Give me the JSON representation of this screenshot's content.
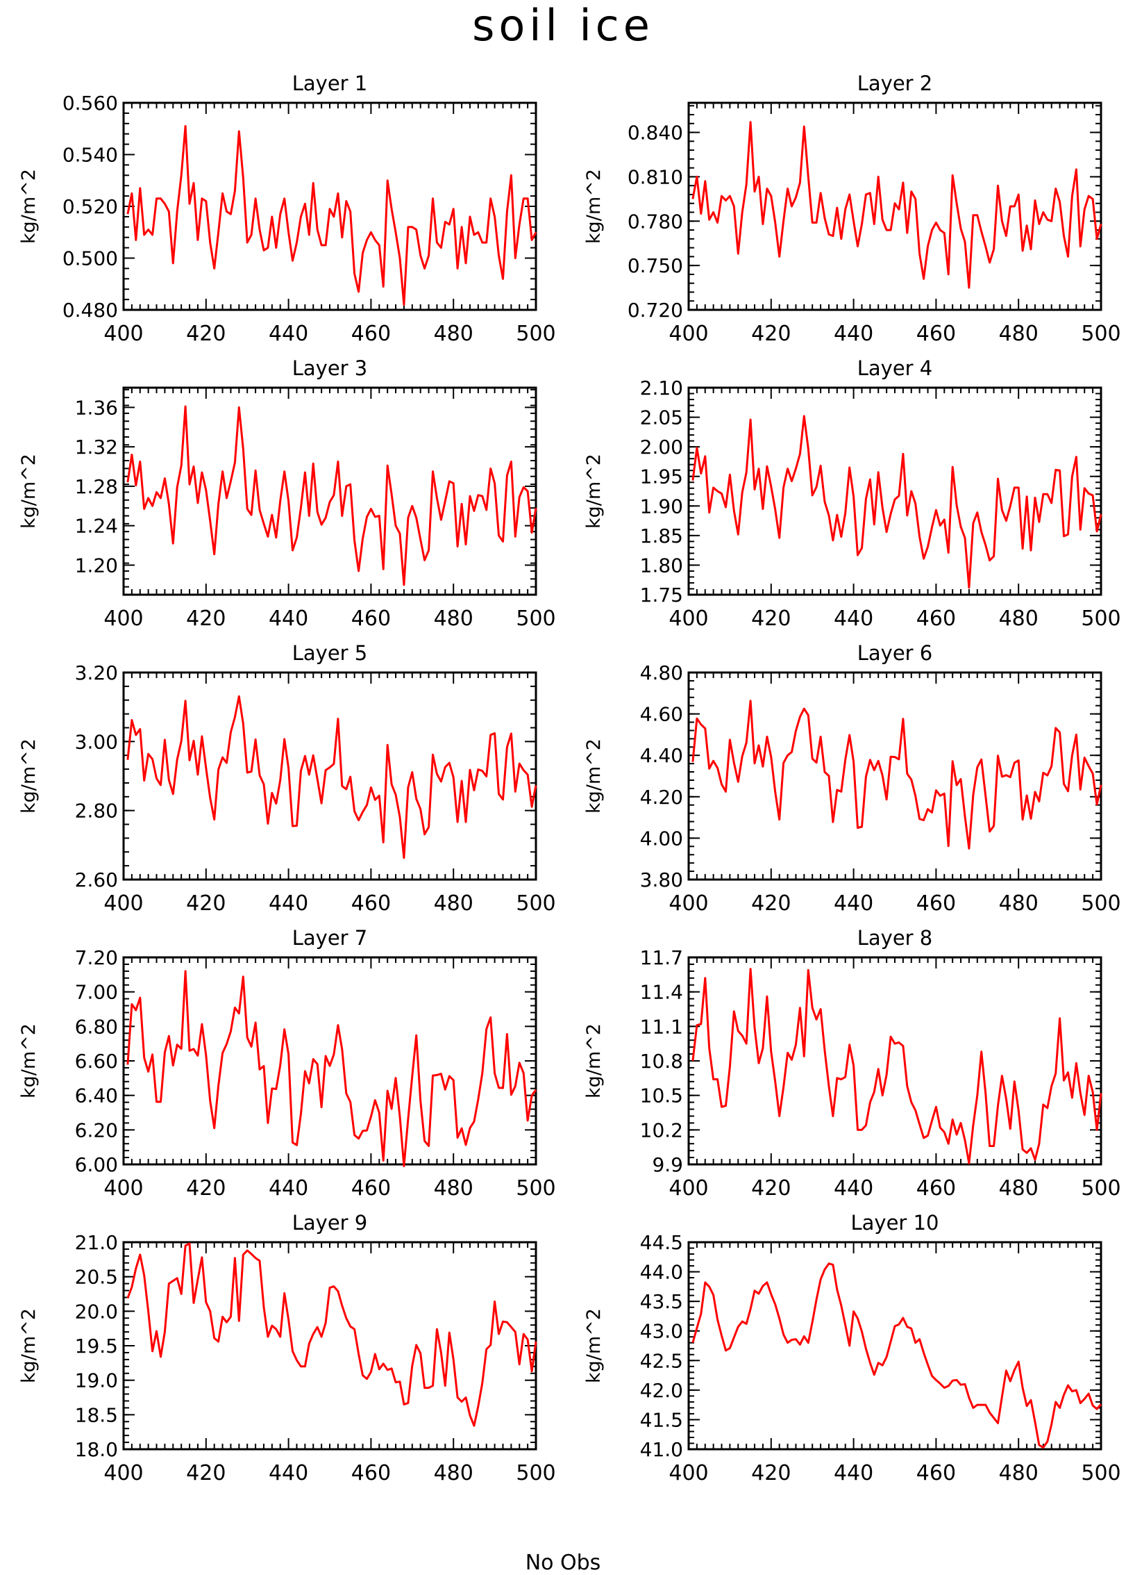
{
  "title": "soil ice",
  "x_caption": "No Obs",
  "style": {
    "line_color": "#ff0000",
    "axis_color": "#000000"
  },
  "chart_data": [
    {
      "type": "line",
      "title": "Layer 1",
      "ylabel": "kg/m^2",
      "xlim": [
        400,
        500
      ],
      "ylim": [
        0.48,
        0.56
      ],
      "yticks": [
        0.48,
        0.5,
        0.52,
        0.54,
        0.56
      ],
      "ydec": 3,
      "xticks": [
        400,
        420,
        440,
        460,
        480,
        500
      ],
      "x_start": 401,
      "values": [
        0.517,
        0.525,
        0.507,
        0.527,
        0.509,
        0.511,
        0.509,
        0.523,
        0.523,
        0.521,
        0.518,
        0.498,
        0.518,
        0.532,
        0.551,
        0.521,
        0.529,
        0.507,
        0.523,
        0.522,
        0.506,
        0.496,
        0.51,
        0.525,
        0.518,
        0.517,
        0.526,
        0.549,
        0.531,
        0.506,
        0.509,
        0.523,
        0.511,
        0.503,
        0.504,
        0.516,
        0.504,
        0.517,
        0.523,
        0.51,
        0.499,
        0.506,
        0.516,
        0.521,
        0.509,
        0.529,
        0.511,
        0.505,
        0.505,
        0.519,
        0.516,
        0.525,
        0.508,
        0.522,
        0.518,
        0.494,
        0.487,
        0.502,
        0.507,
        0.51,
        0.507,
        0.505,
        0.489,
        0.53,
        0.519,
        0.51,
        0.5,
        0.482,
        0.512,
        0.512,
        0.511,
        0.501,
        0.496,
        0.501,
        0.523,
        0.506,
        0.504,
        0.514,
        0.513,
        0.519,
        0.496,
        0.512,
        0.498,
        0.516,
        0.509,
        0.51,
        0.506,
        0.506,
        0.523,
        0.516,
        0.501,
        0.492,
        0.518,
        0.532,
        0.5,
        0.513,
        0.523,
        0.523,
        0.507,
        0.51
      ]
    },
    {
      "type": "line",
      "title": "Layer 2",
      "ylabel": "kg/m^2",
      "xlim": [
        400,
        500
      ],
      "ylim": [
        0.72,
        0.86
      ],
      "yticks": [
        0.72,
        0.75,
        0.78,
        0.81,
        0.84
      ],
      "ydec": 3,
      "xticks": [
        400,
        420,
        440,
        460,
        480,
        500
      ],
      "x_start": 401,
      "values": [
        0.795,
        0.81,
        0.785,
        0.807,
        0.781,
        0.786,
        0.779,
        0.797,
        0.794,
        0.797,
        0.79,
        0.758,
        0.786,
        0.805,
        0.847,
        0.8,
        0.81,
        0.778,
        0.802,
        0.797,
        0.779,
        0.756,
        0.78,
        0.802,
        0.79,
        0.796,
        0.806,
        0.844,
        0.81,
        0.779,
        0.779,
        0.799,
        0.782,
        0.771,
        0.77,
        0.789,
        0.768,
        0.788,
        0.798,
        0.78,
        0.763,
        0.778,
        0.798,
        0.799,
        0.778,
        0.81,
        0.781,
        0.774,
        0.774,
        0.792,
        0.788,
        0.806,
        0.772,
        0.8,
        0.795,
        0.758,
        0.741,
        0.763,
        0.774,
        0.779,
        0.774,
        0.772,
        0.744,
        0.811,
        0.792,
        0.775,
        0.766,
        0.735,
        0.784,
        0.784,
        0.773,
        0.763,
        0.752,
        0.761,
        0.804,
        0.78,
        0.77,
        0.79,
        0.79,
        0.798,
        0.76,
        0.777,
        0.761,
        0.794,
        0.778,
        0.786,
        0.781,
        0.78,
        0.802,
        0.793,
        0.77,
        0.756,
        0.797,
        0.815,
        0.763,
        0.788,
        0.797,
        0.795,
        0.768,
        0.778
      ]
    },
    {
      "type": "line",
      "title": "Layer 3",
      "ylabel": "kg/m^2",
      "xlim": [
        400,
        500
      ],
      "ylim": [
        1.17,
        1.38
      ],
      "yticks": [
        1.2,
        1.24,
        1.28,
        1.32,
        1.36
      ],
      "ydec": 2,
      "xticks": [
        400,
        420,
        440,
        460,
        480,
        500
      ],
      "x_start": 401,
      "values": [
        1.284,
        1.312,
        1.281,
        1.305,
        1.257,
        1.268,
        1.26,
        1.274,
        1.268,
        1.288,
        1.262,
        1.222,
        1.279,
        1.301,
        1.361,
        1.282,
        1.3,
        1.263,
        1.294,
        1.276,
        1.245,
        1.211,
        1.262,
        1.295,
        1.268,
        1.285,
        1.304,
        1.36,
        1.318,
        1.257,
        1.251,
        1.296,
        1.256,
        1.242,
        1.229,
        1.251,
        1.228,
        1.265,
        1.295,
        1.265,
        1.215,
        1.228,
        1.258,
        1.294,
        1.25,
        1.303,
        1.254,
        1.241,
        1.248,
        1.264,
        1.271,
        1.305,
        1.25,
        1.28,
        1.282,
        1.225,
        1.194,
        1.227,
        1.249,
        1.257,
        1.249,
        1.25,
        1.196,
        1.301,
        1.272,
        1.24,
        1.232,
        1.18,
        1.248,
        1.26,
        1.248,
        1.226,
        1.205,
        1.215,
        1.295,
        1.268,
        1.246,
        1.265,
        1.285,
        1.283,
        1.219,
        1.262,
        1.221,
        1.27,
        1.255,
        1.271,
        1.27,
        1.256,
        1.298,
        1.283,
        1.23,
        1.224,
        1.291,
        1.305,
        1.229,
        1.269,
        1.279,
        1.275,
        1.233,
        1.258
      ]
    },
    {
      "type": "line",
      "title": "Layer 4",
      "ylabel": "kg/m^2",
      "xlim": [
        400,
        500
      ],
      "ylim": [
        1.75,
        2.1
      ],
      "yticks": [
        1.75,
        1.8,
        1.85,
        1.9,
        1.95,
        2.0,
        2.05,
        2.1
      ],
      "ydec": 2,
      "xticks": [
        400,
        420,
        440,
        460,
        480,
        500
      ],
      "x_start": 401,
      "values": [
        1.943,
        1.998,
        1.955,
        1.984,
        1.889,
        1.931,
        1.925,
        1.921,
        1.898,
        1.953,
        1.892,
        1.852,
        1.923,
        1.957,
        2.046,
        1.928,
        1.963,
        1.895,
        1.967,
        1.933,
        1.894,
        1.846,
        1.931,
        1.963,
        1.942,
        1.963,
        1.988,
        2.052,
        1.997,
        1.918,
        1.932,
        1.968,
        1.907,
        1.884,
        1.842,
        1.885,
        1.848,
        1.888,
        1.965,
        1.916,
        1.817,
        1.829,
        1.912,
        1.945,
        1.869,
        1.957,
        1.897,
        1.856,
        1.887,
        1.911,
        1.917,
        1.988,
        1.884,
        1.925,
        1.904,
        1.848,
        1.811,
        1.831,
        1.864,
        1.893,
        1.867,
        1.877,
        1.821,
        1.966,
        1.901,
        1.865,
        1.846,
        1.762,
        1.871,
        1.889,
        1.856,
        1.834,
        1.808,
        1.815,
        1.946,
        1.893,
        1.875,
        1.9,
        1.931,
        1.931,
        1.828,
        1.916,
        1.825,
        1.914,
        1.873,
        1.92,
        1.92,
        1.905,
        1.961,
        1.96,
        1.849,
        1.852,
        1.95,
        1.983,
        1.86,
        1.93,
        1.921,
        1.918,
        1.857,
        1.886
      ]
    },
    {
      "type": "line",
      "title": "Layer 5",
      "ylabel": "kg/m^2",
      "xlim": [
        400,
        500
      ],
      "ylim": [
        2.6,
        3.2
      ],
      "yticks": [
        2.6,
        2.8,
        3.0,
        3.2
      ],
      "ydec": 2,
      "xticks": [
        400,
        420,
        440,
        460,
        480,
        500
      ],
      "x_start": 401,
      "values": [
        2.947,
        3.062,
        3.019,
        3.036,
        2.887,
        2.964,
        2.949,
        2.893,
        2.874,
        3.005,
        2.889,
        2.848,
        2.948,
        3.001,
        3.118,
        2.946,
        3.002,
        2.904,
        3.015,
        2.923,
        2.837,
        2.774,
        2.919,
        2.954,
        2.938,
        3.027,
        3.071,
        3.131,
        3.052,
        2.91,
        2.913,
        3.006,
        2.902,
        2.876,
        2.762,
        2.851,
        2.82,
        2.888,
        3.007,
        2.923,
        2.755,
        2.756,
        2.915,
        2.958,
        2.904,
        2.96,
        2.891,
        2.821,
        2.917,
        2.925,
        2.935,
        3.066,
        2.871,
        2.862,
        2.898,
        2.798,
        2.772,
        2.796,
        2.816,
        2.867,
        2.831,
        2.843,
        2.708,
        2.99,
        2.876,
        2.846,
        2.781,
        2.663,
        2.867,
        2.911,
        2.834,
        2.804,
        2.731,
        2.752,
        2.962,
        2.906,
        2.884,
        2.926,
        2.938,
        2.896,
        2.767,
        2.886,
        2.767,
        2.918,
        2.859,
        2.919,
        2.915,
        2.899,
        3.019,
        3.024,
        2.848,
        2.832,
        2.984,
        3.023,
        2.855,
        2.936,
        2.917,
        2.904,
        2.811,
        2.873
      ]
    },
    {
      "type": "line",
      "title": "Layer 6",
      "ylabel": "kg/m^2",
      "xlim": [
        400,
        500
      ],
      "ylim": [
        3.8,
        4.8
      ],
      "yticks": [
        3.8,
        4.0,
        4.2,
        4.4,
        4.6,
        4.8
      ],
      "ydec": 2,
      "xticks": [
        400,
        420,
        440,
        460,
        480,
        500
      ],
      "x_start": 401,
      "values": [
        4.368,
        4.578,
        4.549,
        4.53,
        4.336,
        4.373,
        4.339,
        4.26,
        4.225,
        4.475,
        4.364,
        4.272,
        4.396,
        4.461,
        4.663,
        4.361,
        4.448,
        4.346,
        4.49,
        4.392,
        4.223,
        4.09,
        4.363,
        4.4,
        4.416,
        4.518,
        4.586,
        4.625,
        4.594,
        4.384,
        4.365,
        4.49,
        4.319,
        4.301,
        4.078,
        4.233,
        4.225,
        4.379,
        4.498,
        4.369,
        4.05,
        4.055,
        4.297,
        4.378,
        4.329,
        4.373,
        4.303,
        4.187,
        4.393,
        4.392,
        4.381,
        4.576,
        4.311,
        4.283,
        4.204,
        4.093,
        4.087,
        4.14,
        4.124,
        4.231,
        4.205,
        4.215,
        3.962,
        4.371,
        4.256,
        4.285,
        4.105,
        3.95,
        4.209,
        4.342,
        4.38,
        4.205,
        4.032,
        4.059,
        4.398,
        4.297,
        4.304,
        4.295,
        4.364,
        4.375,
        4.09,
        4.206,
        4.094,
        4.223,
        4.178,
        4.316,
        4.303,
        4.347,
        4.532,
        4.511,
        4.262,
        4.227,
        4.4,
        4.5,
        4.235,
        4.389,
        4.348,
        4.312,
        4.163,
        4.257
      ]
    },
    {
      "type": "line",
      "title": "Layer 7",
      "ylabel": "kg/m^2",
      "xlim": [
        400,
        500
      ],
      "ylim": [
        6.0,
        7.2
      ],
      "yticks": [
        6.0,
        6.2,
        6.4,
        6.6,
        6.8,
        7.0,
        7.2
      ],
      "ydec": 2,
      "xticks": [
        400,
        420,
        440,
        460,
        480,
        500
      ],
      "x_start": 401,
      "values": [
        6.578,
        6.928,
        6.894,
        6.966,
        6.618,
        6.538,
        6.637,
        6.363,
        6.363,
        6.649,
        6.744,
        6.574,
        6.694,
        6.67,
        7.12,
        6.659,
        6.669,
        6.631,
        6.813,
        6.633,
        6.369,
        6.21,
        6.456,
        6.646,
        6.698,
        6.771,
        6.909,
        6.875,
        7.088,
        6.735,
        6.683,
        6.822,
        6.551,
        6.57,
        6.24,
        6.44,
        6.437,
        6.575,
        6.783,
        6.638,
        6.127,
        6.112,
        6.291,
        6.54,
        6.47,
        6.61,
        6.581,
        6.332,
        6.628,
        6.571,
        6.637,
        6.807,
        6.667,
        6.411,
        6.362,
        6.17,
        6.15,
        6.194,
        6.197,
        6.277,
        6.372,
        6.299,
        6.022,
        6.427,
        6.322,
        6.501,
        6.277,
        5.99,
        6.263,
        6.512,
        6.748,
        6.368,
        6.136,
        6.107,
        6.515,
        6.518,
        6.525,
        6.434,
        6.512,
        6.488,
        6.155,
        6.209,
        6.113,
        6.211,
        6.248,
        6.376,
        6.529,
        6.784,
        6.852,
        6.528,
        6.444,
        6.443,
        6.755,
        6.404,
        6.454,
        6.589,
        6.529,
        6.254,
        6.4,
        6.432
      ]
    },
    {
      "type": "line",
      "title": "Layer 8",
      "ylabel": "kg/m^2",
      "xlim": [
        400,
        500
      ],
      "ylim": [
        9.9,
        11.7
      ],
      "yticks": [
        9.9,
        10.2,
        10.5,
        10.8,
        11.1,
        11.4,
        11.7
      ],
      "ydec": 1,
      "xticks": [
        400,
        420,
        440,
        460,
        480,
        500
      ],
      "x_start": 401,
      "values": [
        10.8,
        11.11,
        11.12,
        11.52,
        10.91,
        10.64,
        10.64,
        10.4,
        10.41,
        10.75,
        11.23,
        11.06,
        11.02,
        10.95,
        11.6,
        11.09,
        10.78,
        10.91,
        11.36,
        10.88,
        10.62,
        10.32,
        10.57,
        10.87,
        10.81,
        10.94,
        11.26,
        10.84,
        11.59,
        11.26,
        11.16,
        11.25,
        10.89,
        10.58,
        10.32,
        10.65,
        10.64,
        10.66,
        10.94,
        10.76,
        10.2,
        10.2,
        10.24,
        10.44,
        10.53,
        10.73,
        10.5,
        10.68,
        11.01,
        10.95,
        10.96,
        10.93,
        10.58,
        10.44,
        10.37,
        10.25,
        10.13,
        10.15,
        10.28,
        10.4,
        10.22,
        10.18,
        10.08,
        10.29,
        10.16,
        10.26,
        10.11,
        9.91,
        10.24,
        10.5,
        10.88,
        10.52,
        10.06,
        10.06,
        10.41,
        10.67,
        10.47,
        10.21,
        10.62,
        10.37,
        10.03,
        10.0,
        10.04,
        9.94,
        10.08,
        10.42,
        10.39,
        10.58,
        10.69,
        11.17,
        10.63,
        10.7,
        10.48,
        10.78,
        10.52,
        10.33,
        10.67,
        10.53,
        10.2,
        10.52
      ]
    },
    {
      "type": "line",
      "title": "Layer 9",
      "ylabel": "kg/m^2",
      "xlim": [
        400,
        500
      ],
      "ylim": [
        18.0,
        21.0
      ],
      "yticks": [
        18.0,
        18.5,
        19.0,
        19.5,
        20.0,
        20.5,
        21.0
      ],
      "ydec": 1,
      "xticks": [
        400,
        420,
        440,
        460,
        480,
        500
      ],
      "x_start": 401,
      "values": [
        20.19,
        20.35,
        20.62,
        20.82,
        20.52,
        20.0,
        19.42,
        19.71,
        19.34,
        19.7,
        20.4,
        20.44,
        20.48,
        20.25,
        20.95,
        20.98,
        20.12,
        20.46,
        20.78,
        20.13,
        20.0,
        19.61,
        19.56,
        19.92,
        19.84,
        19.92,
        20.77,
        19.86,
        20.82,
        20.88,
        20.83,
        20.77,
        20.73,
        20.06,
        19.63,
        19.79,
        19.74,
        19.63,
        20.26,
        19.88,
        19.42,
        19.29,
        19.2,
        19.2,
        19.53,
        19.67,
        19.77,
        19.63,
        19.83,
        20.34,
        20.36,
        20.29,
        20.08,
        19.9,
        19.78,
        19.74,
        19.38,
        19.07,
        19.02,
        19.12,
        19.38,
        19.16,
        19.24,
        19.15,
        19.17,
        18.97,
        18.98,
        18.65,
        18.67,
        19.21,
        19.51,
        19.39,
        18.89,
        18.89,
        18.92,
        19.74,
        19.4,
        18.92,
        19.69,
        19.3,
        18.75,
        18.69,
        18.75,
        18.49,
        18.34,
        18.62,
        18.96,
        19.45,
        19.51,
        20.14,
        19.67,
        19.85,
        19.84,
        19.77,
        19.7,
        19.23,
        19.67,
        19.59,
        19.13,
        19.56
      ]
    },
    {
      "type": "line",
      "title": "Layer 10",
      "ylabel": "kg/m^2",
      "xlim": [
        400,
        500
      ],
      "ylim": [
        41.0,
        44.5
      ],
      "yticks": [
        41.0,
        41.5,
        42.0,
        42.5,
        43.0,
        43.5,
        44.0,
        44.5
      ],
      "ydec": 1,
      "xticks": [
        400,
        420,
        440,
        460,
        480,
        500
      ],
      "x_start": 401,
      "values": [
        42.8,
        43.05,
        43.29,
        43.82,
        43.75,
        43.61,
        43.19,
        42.92,
        42.67,
        42.71,
        42.89,
        43.07,
        43.16,
        43.12,
        43.37,
        43.68,
        43.63,
        43.76,
        43.82,
        43.62,
        43.45,
        43.21,
        42.94,
        42.8,
        42.85,
        42.86,
        42.77,
        42.91,
        42.8,
        43.15,
        43.53,
        43.87,
        44.04,
        44.14,
        44.12,
        43.7,
        43.43,
        43.1,
        42.75,
        43.33,
        43.21,
        42.99,
        42.7,
        42.46,
        42.26,
        42.46,
        42.42,
        42.56,
        42.82,
        43.08,
        43.11,
        43.22,
        43.07,
        43.04,
        42.8,
        42.86,
        42.63,
        42.43,
        42.24,
        42.17,
        42.11,
        42.04,
        42.07,
        42.16,
        42.17,
        42.09,
        42.1,
        41.87,
        41.7,
        41.75,
        41.75,
        41.75,
        41.62,
        41.53,
        41.44,
        41.89,
        42.33,
        42.15,
        42.34,
        42.48,
        42.04,
        41.73,
        41.83,
        41.46,
        41.07,
        41.03,
        41.13,
        41.42,
        41.8,
        41.7,
        41.92,
        42.08,
        41.98,
        42.0,
        41.78,
        41.85,
        41.94,
        41.74,
        41.68,
        41.76
      ]
    }
  ]
}
